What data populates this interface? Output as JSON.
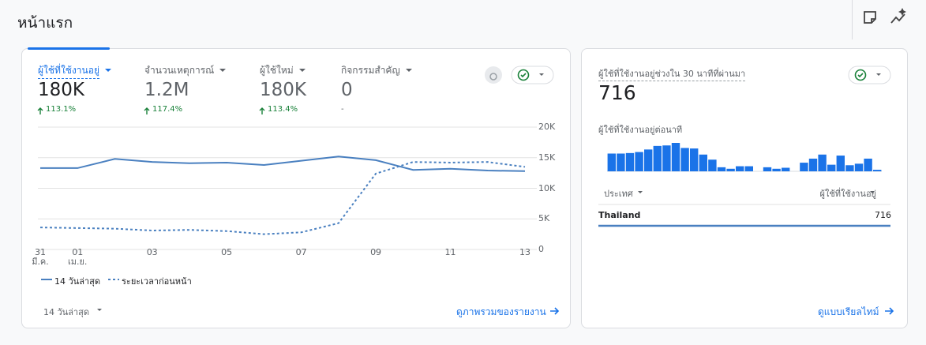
{
  "header": {
    "title": "หน้าแรก"
  },
  "overview": {
    "metrics": [
      {
        "label": "ผู้ใช้ที่ใช้งานอยู่",
        "value": "180K",
        "change": "113.1%"
      },
      {
        "label": "จำนวนเหตุการณ์",
        "value": "1.2M",
        "change": "117.4%"
      },
      {
        "label": "ผู้ใช้ใหม่",
        "value": "180K",
        "change": "113.4%"
      },
      {
        "label": "กิจกรรมสำคัญ",
        "value": "0",
        "change": "-"
      }
    ],
    "chart": {
      "type": "line",
      "categories": [
        "31\nมี.ค.",
        "01\nเม.ย.",
        null,
        "03",
        null,
        "05",
        null,
        "07",
        null,
        "09",
        null,
        "11",
        null,
        "13"
      ],
      "series": [
        {
          "name": "14 วันล่าสุด",
          "color": "#4a80c0",
          "dashed": false,
          "values": [
            13300,
            13300,
            14800,
            14300,
            14100,
            14200,
            13800,
            14500,
            15200,
            14600,
            13000,
            13200,
            12900,
            12800
          ]
        },
        {
          "name": "ระยะเวลาก่อนหน้า",
          "color": "#4a80c0",
          "dashed": true,
          "values": [
            3600,
            3500,
            3400,
            3100,
            3200,
            3000,
            2500,
            2800,
            4300,
            12400,
            14300,
            14200,
            14300,
            13500
          ]
        }
      ],
      "ylim": [
        0,
        20000
      ],
      "yticks": [
        {
          "value": 0,
          "label": "0"
        },
        {
          "value": 5000,
          "label": "5K"
        },
        {
          "value": 10000,
          "label": "10K"
        },
        {
          "value": 15000,
          "label": "15K"
        },
        {
          "value": 20000,
          "label": "20K"
        }
      ],
      "grid": true
    },
    "date_range": "14 วันล่าสุด",
    "link": "ดูภาพรวมของรายงาน"
  },
  "realtime": {
    "title": "ผู้ใช้ที่ใช้งานอยู่ช่วงใน 30 นาทีที่ผ่านมา",
    "value": "716",
    "chart": {
      "type": "bar",
      "title": "ผู้ใช้ที่ใช้งานอยู่ต่อนาที",
      "color": "#1a73e8",
      "values": [
        35,
        35,
        36,
        38,
        43,
        50,
        51,
        56,
        46,
        45,
        33,
        23,
        8,
        5,
        10,
        10,
        0,
        8,
        5,
        7,
        0,
        17,
        25,
        33,
        13,
        31,
        12,
        15,
        25,
        3
      ]
    },
    "table": {
      "headers": [
        "ประเทศ",
        "ผู้ใช้ที่ใช้งานอยู่"
      ],
      "rows": [
        [
          "Thailand",
          "716"
        ]
      ]
    },
    "link": "ดูแบบเรียลไทม์"
  }
}
